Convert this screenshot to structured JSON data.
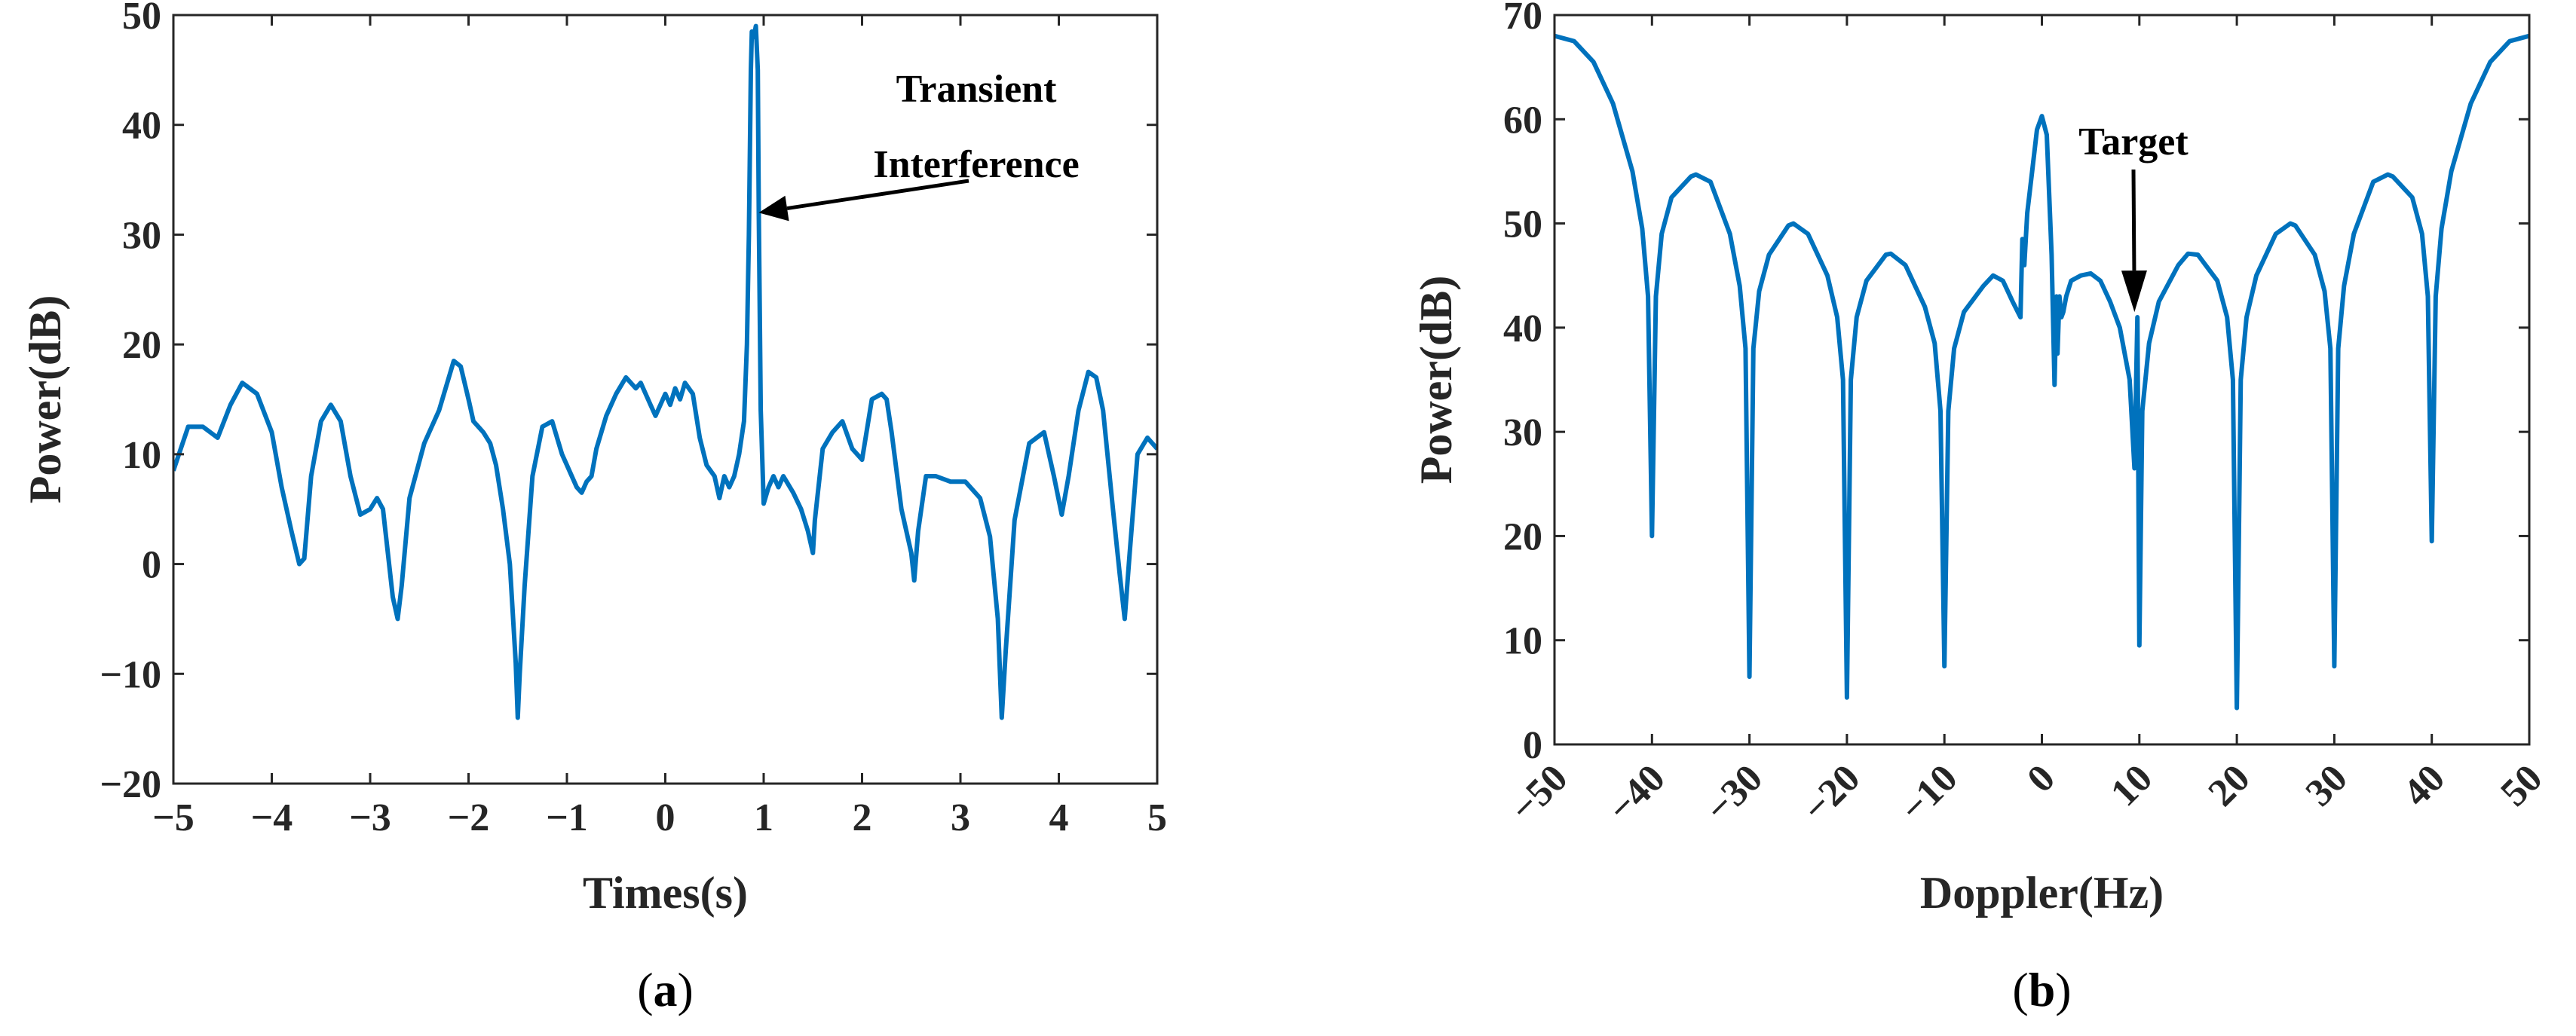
{
  "colors": {
    "series": "#0072BD",
    "axis": "#262626",
    "annotation": "#000000"
  },
  "chart_data": [
    {
      "type": "line",
      "panel_label": "a",
      "xlabel": "Times(s)",
      "ylabel": "Power(dB)",
      "xlim": [
        -5,
        5
      ],
      "ylim": [
        -20,
        50
      ],
      "xticks": [
        -5,
        -4,
        -3,
        -2,
        -1,
        0,
        1,
        2,
        3,
        4,
        5
      ],
      "xtick_labels": [
        "−5",
        "−4",
        "−3",
        "−2",
        "−1",
        "0",
        "1",
        "2",
        "3",
        "4",
        "5"
      ],
      "yticks": [
        -20,
        -10,
        0,
        10,
        20,
        30,
        40,
        50
      ],
      "ytick_labels": [
        "−20",
        "−10",
        "0",
        "10",
        "20",
        "30",
        "40",
        "50"
      ],
      "annotations": [
        {
          "lines": [
            "Transient",
            "Interference"
          ],
          "points_to": [
            0.95,
            32
          ]
        }
      ],
      "series": [
        {
          "x": [
            -5.0,
            -4.85,
            -4.7,
            -4.55,
            -4.42,
            -4.3,
            -4.15,
            -4.0,
            -3.9,
            -3.8,
            -3.72,
            -3.67,
            -3.6,
            -3.5,
            -3.4,
            -3.3,
            -3.2,
            -3.1,
            -3.0,
            -2.93,
            -2.87,
            -2.82,
            -2.77,
            -2.72,
            -2.68,
            -2.6,
            -2.45,
            -2.3,
            -2.15,
            -2.08,
            -2.0,
            -1.95,
            -1.85,
            -1.78,
            -1.72,
            -1.65,
            -1.58,
            -1.52,
            -1.5,
            -1.48,
            -1.43,
            -1.35,
            -1.25,
            -1.15,
            -1.05,
            -1.0,
            -0.95,
            -0.9,
            -0.85,
            -0.8,
            -0.75,
            -0.7,
            -0.6,
            -0.5,
            -0.4,
            -0.3,
            -0.25,
            -0.2,
            -0.15,
            -0.1,
            -0.05,
            0.0,
            0.05,
            0.1,
            0.15,
            0.2,
            0.28,
            0.35,
            0.42,
            0.5,
            0.55,
            0.6,
            0.65,
            0.7,
            0.75,
            0.8,
            0.83,
            0.85,
            0.87,
            0.88,
            0.9,
            0.92,
            0.94,
            0.95,
            0.97,
            1.0,
            1.05,
            1.1,
            1.15,
            1.2,
            1.3,
            1.38,
            1.45,
            1.5,
            1.52,
            1.6,
            1.7,
            1.8,
            1.9,
            2.0,
            2.1,
            2.2,
            2.25,
            2.3,
            2.4,
            2.5,
            2.53,
            2.57,
            2.65,
            2.75,
            2.9,
            3.05,
            3.2,
            3.3,
            3.38,
            3.42,
            3.46,
            3.55,
            3.7,
            3.85,
            3.95,
            4.03,
            4.1,
            4.2,
            4.3,
            4.38,
            4.45,
            4.55,
            4.62,
            4.67,
            4.72,
            4.8,
            4.9,
            5.0
          ],
          "y": [
            8.5,
            12.5,
            12.5,
            11.5,
            14.5,
            16.5,
            15.5,
            12,
            7,
            3,
            0,
            0.5,
            8,
            13,
            14.5,
            13,
            8,
            4.5,
            5,
            6,
            5,
            1,
            -3,
            -5,
            -2,
            6,
            11,
            14,
            18.5,
            18,
            15,
            13,
            12,
            11,
            9,
            5,
            0,
            -9,
            -14,
            -10,
            -2,
            8,
            12.5,
            13,
            10,
            9,
            8,
            7,
            6.5,
            7.5,
            8,
            10.5,
            13.5,
            15.5,
            17,
            16,
            16.5,
            15.5,
            14.5,
            13.5,
            14.5,
            15.5,
            14.5,
            16,
            15,
            16.5,
            15.5,
            11.5,
            9,
            8,
            6,
            8,
            7,
            8,
            10,
            13,
            20,
            30,
            45,
            48.5,
            48,
            49,
            45,
            32,
            14,
            5.5,
            7,
            8,
            7,
            8,
            6.5,
            5,
            3,
            1,
            4,
            10.5,
            12,
            13,
            10.5,
            9.5,
            15,
            15.5,
            15,
            12,
            5,
            1,
            -1.5,
            3,
            8,
            8,
            7.5,
            7.5,
            6,
            2.5,
            -5,
            -14,
            -8,
            4,
            11,
            12,
            8,
            4.5,
            8,
            14,
            17.5,
            17,
            14,
            5,
            -1,
            -5,
            1,
            10,
            11.5,
            10.5
          ]
        }
      ]
    },
    {
      "type": "line",
      "panel_label": "b",
      "xlabel": "Doppler(Hz)",
      "ylabel": "Power(dB)",
      "xlim": [
        -50,
        50
      ],
      "ylim": [
        0,
        70
      ],
      "xticks": [
        -50,
        -40,
        -30,
        -20,
        -10,
        0,
        10,
        20,
        30,
        40,
        50
      ],
      "xtick_labels": [
        "−50",
        "−40",
        "−30",
        "−20",
        "−10",
        "0",
        "10",
        "20",
        "30",
        "40",
        "50"
      ],
      "yticks": [
        0,
        10,
        20,
        30,
        40,
        50,
        60,
        70
      ],
      "ytick_labels": [
        "0",
        "10",
        "20",
        "30",
        "40",
        "50",
        "60",
        "70"
      ],
      "annotations": [
        {
          "lines": [
            "Target"
          ],
          "points_to": [
            9.5,
            41.5
          ]
        }
      ],
      "series": [
        {
          "x": [
            -50.0,
            -48.0,
            -46.0,
            -44.0,
            -42.0,
            -41.0,
            -40.4,
            -40.0,
            -39.6,
            -39.0,
            -38.0,
            -36.0,
            -35.5,
            -34.0,
            -32.0,
            -31.0,
            -30.4,
            -30.0,
            -29.6,
            -29.0,
            -28.0,
            -26.0,
            -25.5,
            -24.0,
            -22.0,
            -21.0,
            -20.4,
            -20.0,
            -19.6,
            -19.0,
            -18.0,
            -16.0,
            -15.5,
            -14.0,
            -12.0,
            -11.0,
            -10.4,
            -10.0,
            -9.6,
            -9.0,
            -8.0,
            -6.0,
            -5.0,
            -4.0,
            -3.0,
            -2.2,
            -2.0,
            -1.8,
            -1.5,
            -1.0,
            -0.5,
            0.0,
            0.5,
            1.0,
            1.3,
            1.5,
            1.6,
            1.8,
            2.0,
            2.2,
            2.5,
            3.0,
            4.0,
            5.0,
            6.0,
            7.0,
            8.0,
            9.0,
            9.5,
            9.8,
            10.0,
            10.3,
            11.0,
            12.0,
            14.0,
            15.0,
            16.0,
            18.0,
            19.0,
            19.6,
            20.0,
            20.4,
            21.0,
            22.0,
            24.0,
            25.5,
            26.0,
            28.0,
            29.0,
            29.6,
            30.0,
            30.4,
            31.0,
            32.0,
            34.0,
            35.5,
            36.0,
            38.0,
            39.0,
            39.6,
            40.0,
            40.4,
            41.0,
            42.0,
            44.0,
            46.0,
            48.0,
            50.0
          ],
          "y": [
            68.0,
            67.5,
            65.5,
            61.5,
            55.0,
            49.5,
            43.0,
            20.0,
            43.0,
            49.0,
            52.5,
            54.5,
            54.7,
            54.0,
            49.0,
            44.0,
            38.0,
            6.5,
            38.0,
            43.5,
            47.0,
            49.8,
            50.0,
            49.0,
            45.0,
            41.0,
            35.0,
            4.5,
            35.0,
            41.0,
            44.5,
            47.0,
            47.1,
            46.0,
            42.0,
            38.5,
            32.0,
            7.5,
            32.0,
            38.0,
            41.5,
            44.0,
            45.0,
            44.5,
            42.5,
            41.0,
            48.5,
            46.0,
            51.0,
            55.0,
            59.0,
            60.3,
            58.5,
            47.0,
            34.5,
            43.0,
            37.5,
            43.0,
            41.0,
            41.5,
            43.0,
            44.5,
            45.0,
            45.2,
            44.5,
            42.5,
            40.0,
            35.0,
            26.5,
            41.0,
            9.5,
            32.0,
            38.5,
            42.5,
            46.0,
            47.1,
            47.0,
            44.5,
            41.0,
            35.0,
            3.5,
            35.0,
            41.0,
            45.0,
            49.0,
            50.0,
            49.8,
            47.0,
            43.5,
            38.0,
            7.5,
            38.0,
            44.0,
            49.0,
            54.0,
            54.7,
            54.5,
            52.5,
            49.0,
            43.0,
            19.5,
            43.0,
            49.5,
            55.0,
            61.5,
            65.5,
            67.5,
            68.0
          ]
        }
      ]
    }
  ]
}
